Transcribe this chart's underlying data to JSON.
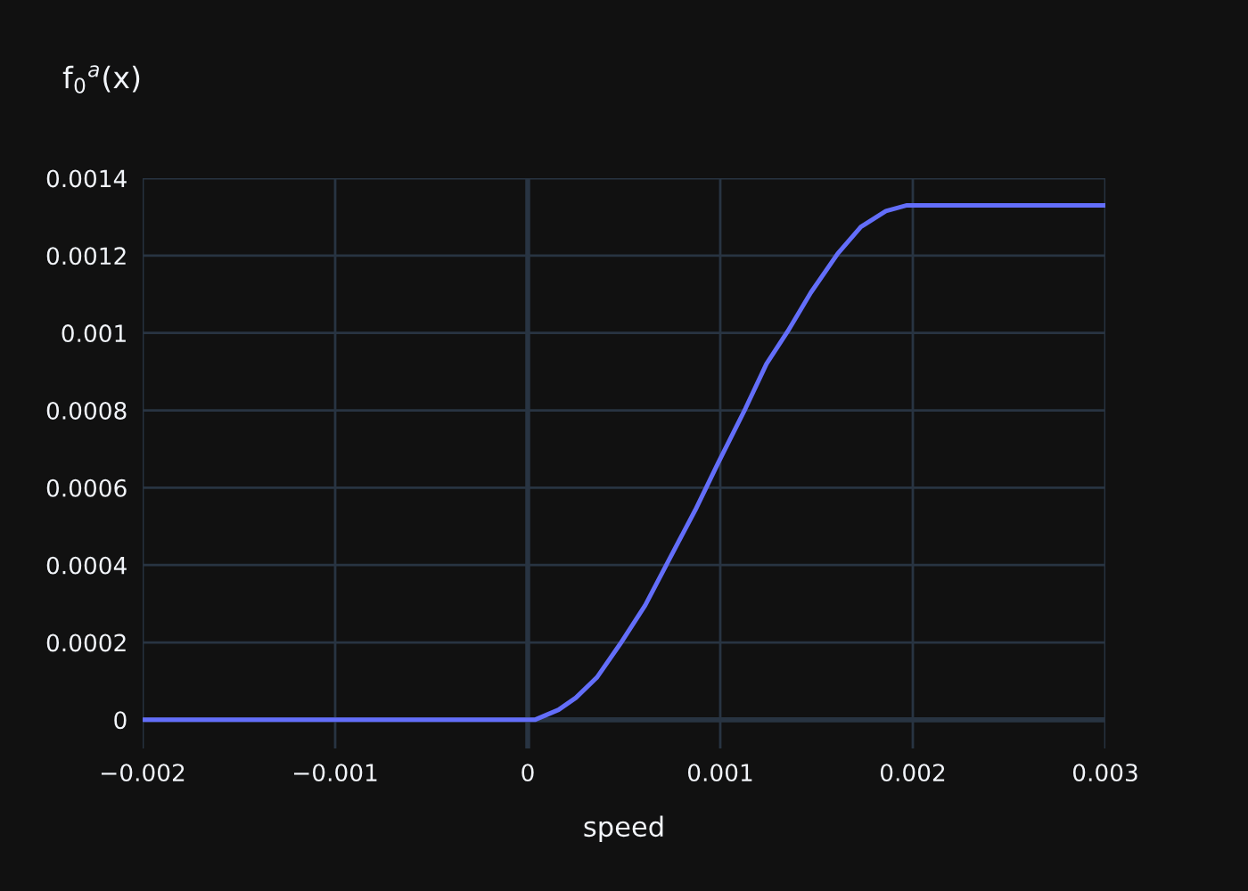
{
  "chart_data": {
    "type": "line",
    "title": "f$_{0}$$^{a}$(x)",
    "xlabel": "speed",
    "x": [
      -0.002,
      0.0,
      3.7e-05,
      0.00016,
      0.00025,
      0.00036,
      0.00048,
      0.00061,
      0.00073,
      0.00087,
      0.00099,
      0.00113,
      0.00124,
      0.00135,
      0.00147,
      0.00161,
      0.00173,
      0.00186,
      0.00197,
      0.003
    ],
    "series": [
      {
        "color": "#636efa",
        "values": [
          0.0,
          0.0,
          0.0,
          2.6e-05,
          5.7e-05,
          0.00011,
          0.000196,
          0.000296,
          0.00041,
          0.000542,
          0.000665,
          0.000804,
          0.00092,
          0.001004,
          0.001104,
          0.001205,
          0.001274,
          0.001315,
          0.00133,
          0.00133
        ]
      }
    ],
    "xlim": [
      -0.002,
      0.003
    ],
    "ylim": [
      -7.4e-05,
      0.0014
    ],
    "xticks": [
      {
        "value": -0.002,
        "label": "−0.002"
      },
      {
        "value": -0.001,
        "label": "−0.001"
      },
      0,
      0.001,
      0.002,
      0.003
    ],
    "yticks": [
      0,
      0.0002,
      0.0004,
      0.0006,
      0.0008,
      0.001,
      0.0012,
      0.0014
    ],
    "grid": true,
    "legend": false,
    "marker": "none",
    "line_style": "solid"
  }
}
